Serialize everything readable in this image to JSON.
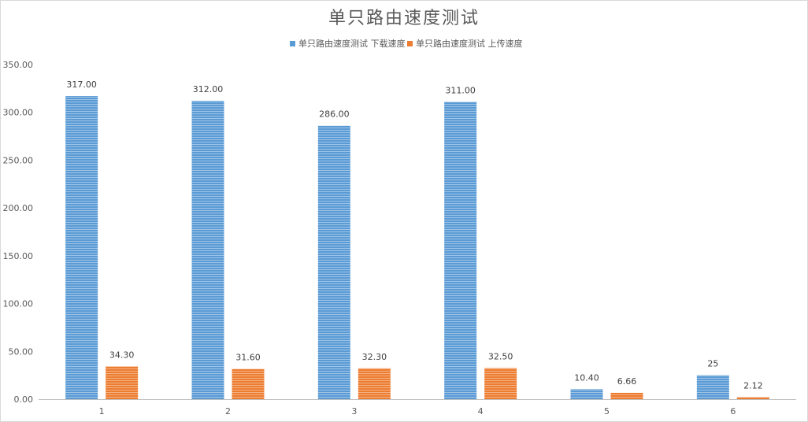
{
  "chart_data": {
    "type": "bar",
    "title": "单只路由速度测试",
    "xlabel": "",
    "ylabel": "",
    "categories": [
      "1",
      "2",
      "3",
      "4",
      "5",
      "6"
    ],
    "series": [
      {
        "name": "单只路由速度测试 下载速度",
        "color": "#5b9bd5",
        "values": [
          317,
          312,
          286,
          311,
          10.4,
          25
        ],
        "labels": [
          "317.00",
          "312.00",
          "286.00",
          "311.00",
          "10.40",
          "25"
        ]
      },
      {
        "name": "单只路由速度测试 上传速度",
        "color": "#ed7d31",
        "values": [
          34.3,
          31.6,
          32.3,
          32.5,
          6.66,
          2.12
        ],
        "labels": [
          "34.30",
          "31.60",
          "32.30",
          "32.50",
          "6.66",
          "2.12"
        ]
      }
    ],
    "ylim": [
      0,
      350
    ],
    "yticks": [
      "0.00",
      "50.00",
      "100.00",
      "150.00",
      "200.00",
      "250.00",
      "300.00",
      "350.00"
    ],
    "grid": false,
    "legend": "top"
  }
}
